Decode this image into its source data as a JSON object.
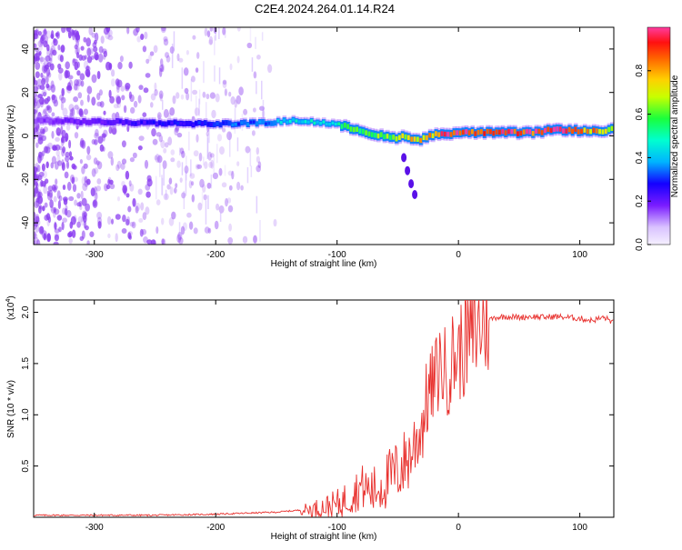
{
  "title": "C2E4.2024.264.01.14.R24",
  "colors": {
    "background": "#ffffff",
    "axis": "#000000",
    "snr_line": "#e8302d",
    "spectrogram_scatter": "#8a3cf0"
  },
  "chart_data": [
    {
      "type": "heatmap",
      "title": "C2E4.2024.264.01.14.R24",
      "xlabel": "Height of straight line (km)",
      "ylabel": "Frequency (Hz)",
      "xlim": [
        -350,
        128
      ],
      "ylim": [
        -50,
        50
      ],
      "x_ticks": [
        -300,
        -200,
        -100,
        0,
        100
      ],
      "y_ticks": [
        -40,
        -20,
        0,
        20,
        40
      ],
      "x_tick_labels": [
        "-300",
        "-200",
        "-100",
        "0",
        "100"
      ],
      "y_tick_labels": [
        "-40",
        "-20",
        "0",
        "20",
        "40"
      ],
      "grid": false,
      "ridge": {
        "description_x": [
          -350,
          -300,
          -250,
          -200,
          -160,
          -140,
          -120,
          -100,
          -85,
          -70,
          -55,
          -45,
          -35,
          -25,
          -15,
          0,
          30,
          60,
          80,
          95,
          110,
          128
        ],
        "frequency_hz": [
          7,
          6.5,
          6,
          5.5,
          6,
          7,
          6.5,
          5,
          3,
          0.5,
          -1,
          0,
          -2,
          0,
          1,
          1.5,
          1.5,
          1.5,
          3,
          2.5,
          2,
          3
        ],
        "intensity": [
          0.15,
          0.2,
          0.25,
          0.3,
          0.35,
          0.45,
          0.45,
          0.5,
          0.55,
          0.6,
          0.65,
          0.7,
          0.75,
          0.8,
          0.9,
          0.95,
          0.95,
          0.9,
          0.9,
          0.85,
          0.8,
          0.6
        ]
      },
      "branch": {
        "x": [
          -45,
          -42,
          -39,
          -36
        ],
        "frequency_hz": [
          -10,
          -16,
          -22,
          -27
        ]
      },
      "colorbar": {
        "label": "Normalized spectral amplitude",
        "range": [
          0,
          1
        ],
        "ticks": [
          0.0,
          0.2,
          0.4,
          0.6,
          0.8
        ],
        "tick_labels": [
          "0.0",
          "0.2",
          "0.4",
          "0.6",
          "0.8"
        ],
        "stops": [
          {
            "v": 0.0,
            "c": "#f5f0ff"
          },
          {
            "v": 0.08,
            "c": "#d9c2ff"
          },
          {
            "v": 0.18,
            "c": "#7a1cff"
          },
          {
            "v": 0.28,
            "c": "#1400ff"
          },
          {
            "v": 0.38,
            "c": "#00b4ff"
          },
          {
            "v": 0.48,
            "c": "#00ffd0"
          },
          {
            "v": 0.58,
            "c": "#1aff3c"
          },
          {
            "v": 0.68,
            "c": "#c8ff00"
          },
          {
            "v": 0.76,
            "c": "#ffd000"
          },
          {
            "v": 0.86,
            "c": "#ff6000"
          },
          {
            "v": 0.93,
            "c": "#ff1010"
          },
          {
            "v": 1.0,
            "c": "#ff3ca0"
          }
        ]
      }
    },
    {
      "type": "line",
      "xlabel": "Height of straight line (km)",
      "ylabel": "SNR (10 * v/v)",
      "y_multiplier_label": "(x10",
      "y_multiplier_exp": "4",
      "y_multiplier_close": ")",
      "xlim": [
        -350,
        128
      ],
      "ylim": [
        0,
        2.12
      ],
      "x_ticks": [
        -300,
        -200,
        -100,
        0,
        100
      ],
      "y_ticks": [
        0.5,
        1.0,
        1.5,
        2.0
      ],
      "x_tick_labels": [
        "-300",
        "-200",
        "-100",
        "0",
        "100"
      ],
      "y_tick_labels": [
        "0.5",
        "1.0",
        "1.5",
        "2.0"
      ],
      "grid": false,
      "series": [
        {
          "color": "#e8302d",
          "x": [
            -350,
            -300,
            -250,
            -200,
            -150,
            -120,
            -100,
            -90,
            -80,
            -70,
            -60,
            -50,
            -40,
            -30,
            -25,
            -20,
            -15,
            -10,
            -5,
            0,
            10,
            20,
            30,
            40,
            50,
            60,
            70,
            80,
            90,
            100,
            110,
            120,
            128
          ],
          "y": [
            0.02,
            0.02,
            0.02,
            0.03,
            0.05,
            0.08,
            0.12,
            0.2,
            0.3,
            0.25,
            0.35,
            0.45,
            0.6,
            0.9,
            1.2,
            1.3,
            1.5,
            1.4,
            1.55,
            1.6,
            1.75,
            1.9,
            1.95,
            1.96,
            1.95,
            1.96,
            1.95,
            1.96,
            1.95,
            1.94,
            1.92,
            1.95,
            1.9
          ]
        }
      ]
    }
  ]
}
